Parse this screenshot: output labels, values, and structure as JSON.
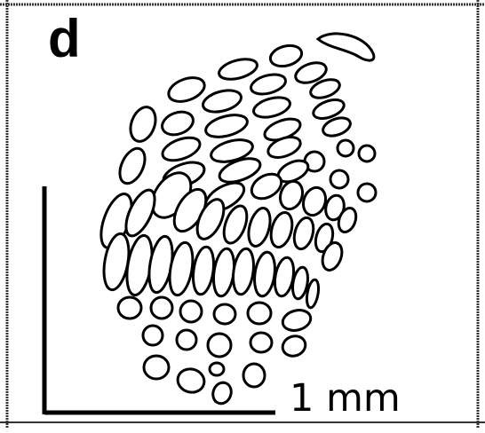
{
  "panel": {
    "label": "d"
  },
  "scale_bar": {
    "label": "1 mm"
  },
  "colors": {
    "stroke": "#000000",
    "background": "#ffffff",
    "frame": "#333333"
  }
}
